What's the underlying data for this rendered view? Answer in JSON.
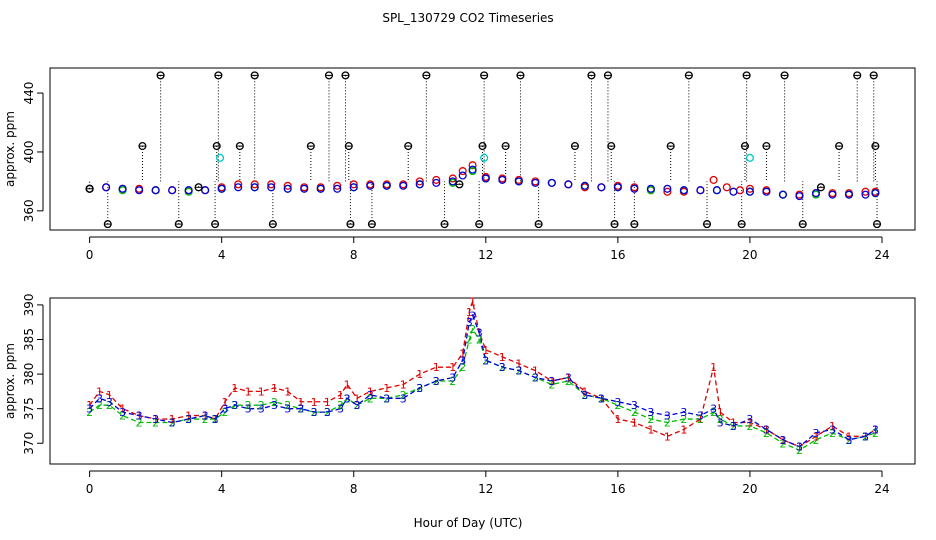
{
  "chart_data": [
    {
      "type": "scatter",
      "title": "SPL_130729  CO2 Timeseries",
      "xlabel": "",
      "ylabel": "approx. ppm",
      "xlim": [
        -1.2,
        25
      ],
      "ylim": [
        347,
        457
      ],
      "x_ticks": [
        0,
        4,
        8,
        12,
        16,
        20,
        24
      ],
      "y_ticks": [
        360,
        400,
        440
      ],
      "series": [
        {
          "name": "black flagged points",
          "marker": "circle-plus",
          "color": "#000000",
          "x": [
            0.0,
            0.55,
            1.6,
            2.15,
            2.7,
            3.3,
            3.8,
            3.85,
            3.9,
            4.55,
            5.0,
            5.55,
            6.7,
            7.25,
            7.75,
            7.85,
            7.9,
            8.55,
            9.65,
            10.2,
            10.75,
            11.2,
            11.8,
            11.9,
            11.95,
            12.6,
            13.05,
            13.6,
            14.7,
            15.2,
            15.7,
            15.8,
            15.9,
            16.5,
            17.6,
            18.15,
            18.7,
            19.75,
            19.85,
            19.9,
            20.5,
            21.05,
            21.6,
            22.15,
            22.7,
            23.25,
            23.75,
            23.8,
            23.85
          ],
          "y": [
            375,
            351,
            404,
            452,
            351,
            376,
            351,
            404,
            452,
            404,
            452,
            351,
            404,
            452,
            452,
            404,
            351,
            351,
            404,
            452,
            351,
            378,
            351,
            404,
            452,
            404,
            452,
            351,
            404,
            452,
            452,
            404,
            351,
            351,
            404,
            452,
            351,
            351,
            404,
            452,
            404,
            452,
            351,
            376,
            404,
            452,
            452,
            404,
            351
          ]
        },
        {
          "name": "cyan flagged points",
          "marker": "circle",
          "color": "#00c8c8",
          "x": [
            3.95,
            11.95,
            20.0
          ],
          "y": [
            396,
            396,
            396
          ]
        },
        {
          "name": "red",
          "marker": "circle",
          "color": "#e00000",
          "x": [
            0.0,
            0.5,
            1.0,
            1.5,
            2.0,
            2.5,
            3.0,
            3.5,
            4.0,
            4.5,
            5.0,
            5.5,
            6.0,
            6.5,
            7.0,
            7.5,
            8.0,
            8.5,
            9.0,
            9.5,
            10.0,
            10.5,
            11.0,
            11.3,
            11.6,
            12.0,
            12.5,
            13.0,
            13.5,
            14.0,
            14.5,
            15.0,
            15.5,
            16.0,
            16.5,
            17.0,
            17.5,
            18.0,
            18.5,
            18.9,
            19.3,
            19.7,
            20.0,
            20.5,
            21.0,
            21.5,
            22.0,
            22.5,
            23.0,
            23.5,
            23.8
          ],
          "y": [
            375,
            376,
            375,
            375,
            374,
            374,
            374,
            374,
            376,
            378,
            378,
            378,
            377,
            376,
            376,
            377,
            378,
            378,
            378,
            378,
            380,
            381,
            382,
            387,
            391,
            383,
            382,
            381,
            380,
            379,
            378,
            376,
            376,
            377,
            376,
            374,
            373,
            373,
            374,
            381,
            376,
            374,
            375,
            374,
            371,
            371,
            372,
            372,
            372,
            373,
            373
          ]
        },
        {
          "name": "blue",
          "marker": "circle",
          "color": "#0000dd",
          "x": [
            0.0,
            0.5,
            1.0,
            1.5,
            2.0,
            2.5,
            3.0,
            3.5,
            4.0,
            4.5,
            5.0,
            5.5,
            6.0,
            6.5,
            7.0,
            7.5,
            8.0,
            8.5,
            9.0,
            9.5,
            10.0,
            10.5,
            11.0,
            11.3,
            11.6,
            12.0,
            12.5,
            13.0,
            13.5,
            14.0,
            14.5,
            15.0,
            15.5,
            16.0,
            16.5,
            17.0,
            17.5,
            18.0,
            18.5,
            19.0,
            19.5,
            20.0,
            20.5,
            21.0,
            21.5,
            22.0,
            22.5,
            23.0,
            23.5,
            23.8
          ],
          "y": [
            375,
            376,
            375,
            374,
            374,
            374,
            374,
            374,
            375,
            376,
            376,
            376,
            375,
            375,
            375,
            375,
            376,
            377,
            377,
            377,
            378,
            379,
            380,
            384,
            388,
            382,
            381,
            380,
            379,
            379,
            378,
            377,
            376,
            376,
            375,
            375,
            375,
            374,
            374,
            374,
            373,
            373,
            373,
            371,
            370,
            372,
            371,
            371,
            371,
            372
          ]
        },
        {
          "name": "green",
          "marker": "circle",
          "color": "#00bb00",
          "x": [
            0.0,
            1.0,
            2.0,
            3.0,
            4.0,
            5.0,
            6.0,
            7.0,
            8.0,
            9.0,
            10.0,
            11.0,
            11.6,
            12.0,
            13.0,
            14.0,
            15.0,
            16.0,
            17.0,
            18.0,
            19.0,
            20.0,
            21.0,
            22.0,
            23.0,
            23.8
          ],
          "y": [
            375,
            374,
            374,
            373,
            375,
            376,
            375,
            375,
            376,
            377,
            378,
            379,
            387,
            382,
            380,
            379,
            377,
            376,
            374,
            374,
            374,
            373,
            371,
            371,
            371,
            372
          ]
        }
      ]
    },
    {
      "type": "line",
      "title": "",
      "xlabel": "Hour of Day (UTC)",
      "ylabel": "approx. ppm",
      "xlim": [
        -1.2,
        25
      ],
      "ylim": [
        367,
        391
      ],
      "x_ticks": [
        0,
        4,
        8,
        12,
        16,
        20,
        24
      ],
      "y_ticks": [
        370,
        375,
        380,
        385,
        390
      ],
      "series": [
        {
          "name": "1",
          "marker": "1",
          "color": "#e00000",
          "x": [
            0.0,
            0.3,
            0.6,
            1.0,
            1.5,
            2.0,
            2.5,
            3.0,
            3.5,
            3.8,
            4.1,
            4.4,
            4.8,
            5.2,
            5.6,
            6.0,
            6.4,
            6.8,
            7.2,
            7.6,
            7.8,
            8.1,
            8.5,
            9.0,
            9.5,
            10.0,
            10.5,
            11.0,
            11.3,
            11.5,
            11.6,
            11.8,
            12.0,
            12.5,
            13.0,
            13.5,
            14.0,
            14.5,
            15.0,
            15.5,
            16.0,
            16.5,
            17.0,
            17.5,
            18.0,
            18.5,
            18.9,
            19.1,
            19.5,
            20.0,
            20.5,
            21.0,
            21.5,
            22.0,
            22.5,
            23.0,
            23.5,
            23.8
          ],
          "y": [
            375.5,
            377.5,
            377,
            375,
            374,
            373.5,
            373.5,
            374,
            374,
            373.5,
            376,
            378,
            377.5,
            377.5,
            378,
            377.5,
            376,
            376,
            376,
            377,
            378.5,
            376.5,
            377.5,
            378,
            378.5,
            380,
            381,
            381,
            383,
            389,
            390.5,
            386,
            383.5,
            382.5,
            381.5,
            380.5,
            379,
            379.5,
            377.5,
            376.5,
            373.5,
            373,
            372,
            371,
            372,
            373.5,
            381,
            374.5,
            373,
            373,
            372,
            370.5,
            369.5,
            371,
            372.5,
            371,
            371,
            372
          ]
        },
        {
          "name": "2",
          "marker": "2",
          "color": "#00bb00",
          "x": [
            0.0,
            0.3,
            0.6,
            1.0,
            1.5,
            2.0,
            2.5,
            3.0,
            3.5,
            3.8,
            4.1,
            4.4,
            4.8,
            5.2,
            5.6,
            6.0,
            6.4,
            6.8,
            7.2,
            7.6,
            7.8,
            8.1,
            8.5,
            9.0,
            9.5,
            10.0,
            10.5,
            11.0,
            11.3,
            11.5,
            11.6,
            11.8,
            12.0,
            12.5,
            13.0,
            13.5,
            14.0,
            14.5,
            15.0,
            15.5,
            16.0,
            16.5,
            17.0,
            17.5,
            18.0,
            18.5,
            18.9,
            19.1,
            19.5,
            20.0,
            20.5,
            21.0,
            21.5,
            22.0,
            22.5,
            23.0,
            23.5,
            23.8
          ],
          "y": [
            374.5,
            375.5,
            375.5,
            374,
            373,
            373,
            373,
            373.5,
            373.5,
            373.5,
            374.5,
            375.5,
            375.5,
            375.5,
            376,
            375.5,
            375,
            374.5,
            374.5,
            375.5,
            376.5,
            375.5,
            376.5,
            376.5,
            377,
            378,
            379,
            379,
            381,
            385,
            386.5,
            385,
            382,
            381,
            380.5,
            379.5,
            378.5,
            379,
            377,
            376.5,
            375.5,
            374.5,
            373.5,
            373,
            373.5,
            373.5,
            374.5,
            373.5,
            372.5,
            372.5,
            371.5,
            370,
            369,
            370.5,
            371.5,
            370.5,
            371,
            371.5
          ]
        },
        {
          "name": "3",
          "marker": "3",
          "color": "#0000dd",
          "x": [
            0.0,
            0.3,
            0.6,
            1.0,
            1.5,
            2.0,
            2.5,
            3.0,
            3.5,
            3.8,
            4.1,
            4.4,
            4.8,
            5.2,
            5.6,
            6.0,
            6.4,
            6.8,
            7.2,
            7.6,
            7.8,
            8.1,
            8.5,
            9.0,
            9.5,
            10.0,
            10.5,
            11.0,
            11.3,
            11.5,
            11.6,
            11.8,
            12.0,
            12.5,
            13.0,
            13.5,
            14.0,
            14.5,
            15.0,
            15.5,
            16.0,
            16.5,
            17.0,
            17.5,
            18.0,
            18.5,
            18.9,
            19.1,
            19.5,
            20.0,
            20.5,
            21.0,
            21.5,
            22.0,
            22.5,
            23.0,
            23.5,
            23.8
          ],
          "y": [
            375,
            376.5,
            376,
            374.5,
            374,
            373.5,
            373,
            373.5,
            374,
            373.5,
            375,
            375.5,
            375,
            375,
            375.5,
            375,
            375,
            374.5,
            374.5,
            375,
            376.5,
            375.5,
            377,
            376.5,
            376.5,
            378,
            379,
            379.5,
            382,
            387.5,
            388.5,
            386,
            382,
            381,
            380.5,
            379.5,
            379,
            379.5,
            377,
            376.5,
            376,
            375.5,
            374.5,
            374,
            374.5,
            374,
            375,
            373,
            372.5,
            373.5,
            372,
            370.5,
            369.5,
            371.5,
            372,
            370.5,
            371,
            372
          ]
        }
      ]
    }
  ]
}
